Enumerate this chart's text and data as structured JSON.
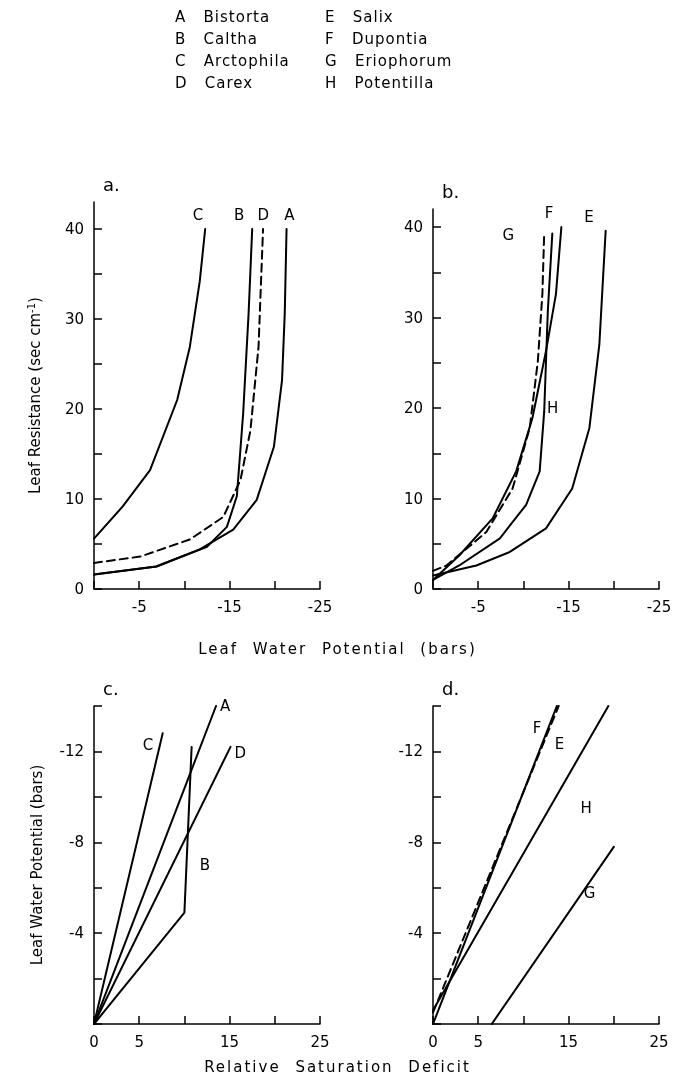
{
  "chart_data": [
    {
      "type": "line",
      "title": "a.",
      "xlabel": "Leaf Water Potential (bars)",
      "ylabel": "Leaf Resistance (sec cm$^{-1}$)",
      "annotations": [
        "A Bistorta",
        "B Caltha",
        "C Arctophila",
        "D Carex",
        "E Salix",
        "F Dupontia",
        "G Eriophorum",
        "H Potentilla"
      ],
      "xlim": [
        0,
        -25
      ],
      "xticks": [
        {
          "value": 0,
          "label": null
        },
        -5,
        {
          "value": -10,
          "label": null
        },
        -15,
        {
          "value": -20,
          "label": null
        },
        -25
      ],
      "ylim": [
        0,
        43
      ],
      "yticks": [
        0,
        {
          "value": 5,
          "label": null
        },
        10,
        {
          "value": 15,
          "label": null
        },
        20,
        {
          "value": 25,
          "label": null
        },
        30,
        {
          "value": 35,
          "label": null
        },
        40
      ],
      "grid": false,
      "legend": false,
      "marker": "none",
      "series": [
        {
          "name": "C",
          "color": "#000000",
          "line_style": "solid",
          "x": [
            0,
            -3.2,
            -6.2,
            -9.2,
            -10.6,
            -11.7,
            -12.3
          ],
          "values": [
            5.6,
            9.2,
            13.2,
            21,
            26.9,
            34.2,
            40
          ]
        },
        {
          "name": "B",
          "color": "#000000",
          "line_style": "solid",
          "x": [
            0,
            -6.9,
            -12.5,
            -14.7,
            -15.8,
            -16.5,
            -17.1,
            -17.5
          ],
          "values": [
            1.6,
            2.5,
            4.7,
            6.9,
            10.3,
            19.5,
            30.6,
            40
          ]
        },
        {
          "name": "D",
          "color": "#000000",
          "line_style": "dashed",
          "x": [
            0,
            -5.1,
            -10.6,
            -14.3,
            -16.2,
            -17.3,
            -18.2,
            -18.7
          ],
          "values": [
            2.9,
            3.6,
            5.5,
            8,
            12.1,
            17.6,
            26.9,
            40
          ]
        },
        {
          "name": "A",
          "color": "#000000",
          "line_style": "solid",
          "x": [
            0,
            -6.9,
            -11.7,
            -15.4,
            -18,
            -19.9,
            -20.8,
            -21.1,
            -21.3
          ],
          "values": [
            1.6,
            2.5,
            4.4,
            6.6,
            9.9,
            15.8,
            23.2,
            30.6,
            40
          ]
        }
      ]
    },
    {
      "type": "line",
      "title": "b.",
      "xlim": [
        0,
        -25
      ],
      "xticks": [
        {
          "value": 0,
          "label": null
        },
        -5,
        {
          "value": -10,
          "label": null
        },
        -15,
        {
          "value": -20,
          "label": null
        },
        -25
      ],
      "ylim": [
        0,
        42
      ],
      "yticks": [
        0,
        {
          "value": 5,
          "label": null
        },
        10,
        {
          "value": 15,
          "label": null
        },
        20,
        {
          "value": 25,
          "label": null
        },
        30,
        {
          "value": 35,
          "label": null
        },
        40
      ],
      "grid": false,
      "legend": false,
      "marker": "none",
      "series": [
        {
          "name": "G",
          "color": "#000000",
          "line_style": "dashed",
          "x": [
            0,
            -1.5,
            -5.9,
            -8.8,
            -10.7,
            -11.6,
            -12.1,
            -12.3
          ],
          "values": [
            2,
            2.6,
            6.3,
            11.1,
            17.8,
            25.2,
            32.6,
            39.3
          ]
        },
        {
          "name": "F",
          "color": "#000000",
          "line_style": "solid",
          "x": [
            0,
            -2.9,
            -6.6,
            -9.2,
            -11,
            -12.5,
            -13.6,
            -14.2
          ],
          "values": [
            1,
            3.7,
            7.8,
            13,
            18.9,
            26.3,
            32.6,
            40
          ]
        },
        {
          "name": "H",
          "color": "#000000",
          "line_style": "solid",
          "x": [
            0,
            -2.9,
            -7.4,
            -10.3,
            -11.8,
            -12.3,
            -12.7,
            -13.2
          ],
          "values": [
            1,
            2.6,
            5.6,
            9.3,
            13,
            19.6,
            30.7,
            39.3
          ]
        },
        {
          "name": "E",
          "color": "#000000",
          "line_style": "solid",
          "x": [
            0,
            -4.8,
            -8.5,
            -12.5,
            -15.4,
            -17.3,
            -18.4,
            -19.1
          ],
          "values": [
            1.5,
            2.6,
            4.1,
            6.7,
            11.1,
            17.8,
            27,
            39.6
          ]
        }
      ]
    },
    {
      "type": "line",
      "title": "c.",
      "xlabel": "Relative Saturation Deficit",
      "ylabel": "Leaf Water Potential (bars)",
      "xlim": [
        0,
        25
      ],
      "xticks": [
        0,
        5,
        {
          "value": 10,
          "label": null
        },
        15,
        {
          "value": 20,
          "label": null
        },
        25
      ],
      "ylim": [
        0,
        -14
      ],
      "yticks": [
        {
          "value": 0,
          "label": null
        },
        {
          "value": -2,
          "label": null
        },
        -4,
        {
          "value": -6,
          "label": null
        },
        -8,
        {
          "value": -10,
          "label": null
        },
        -12,
        {
          "value": -14,
          "label": null
        }
      ],
      "grid": false,
      "legend": false,
      "marker": "none",
      "series": [
        {
          "name": "C",
          "color": "#000000",
          "line_style": "solid",
          "x": [
            0,
            7.6
          ],
          "values": [
            0,
            -12.8
          ]
        },
        {
          "name": "A",
          "color": "#000000",
          "line_style": "solid",
          "x": [
            0,
            13.5
          ],
          "values": [
            0,
            -14
          ]
        },
        {
          "name": "D",
          "color": "#000000",
          "line_style": "solid",
          "x": [
            0,
            15.1
          ],
          "values": [
            0,
            -12.2
          ]
        },
        {
          "name": "B",
          "color": "#000000",
          "line_style": "solid",
          "x": [
            0,
            10,
            10.8
          ],
          "values": [
            0,
            -4.9,
            -12.2
          ]
        }
      ]
    },
    {
      "type": "line",
      "title": "d.",
      "xlim": [
        0,
        25
      ],
      "xticks": [
        0,
        5,
        {
          "value": 10,
          "label": null
        },
        15,
        {
          "value": 20,
          "label": null
        },
        25
      ],
      "ylim": [
        0,
        -14
      ],
      "yticks": [
        {
          "value": 0,
          "label": null
        },
        {
          "value": -2,
          "label": null
        },
        -4,
        {
          "value": -6,
          "label": null
        },
        -8,
        {
          "value": -10,
          "label": null
        },
        -12,
        {
          "value": -14,
          "label": null
        }
      ],
      "grid": false,
      "legend": false,
      "marker": "none",
      "series": [
        {
          "name": "F",
          "color": "#000000",
          "line_style": "dashed",
          "x": [
            0,
            13.9
          ],
          "values": [
            -0.5,
            -14
          ]
        },
        {
          "name": "E",
          "color": "#000000",
          "line_style": "solid",
          "x": [
            0,
            13.7
          ],
          "values": [
            0,
            -14
          ]
        },
        {
          "name": "H",
          "color": "#000000",
          "line_style": "solid",
          "x": [
            0,
            19.4
          ],
          "values": [
            -0.6,
            -14
          ]
        },
        {
          "name": "G",
          "color": "#000000",
          "line_style": "solid",
          "x": [
            6.5,
            20
          ],
          "values": [
            0,
            -7.8
          ]
        }
      ]
    }
  ]
}
